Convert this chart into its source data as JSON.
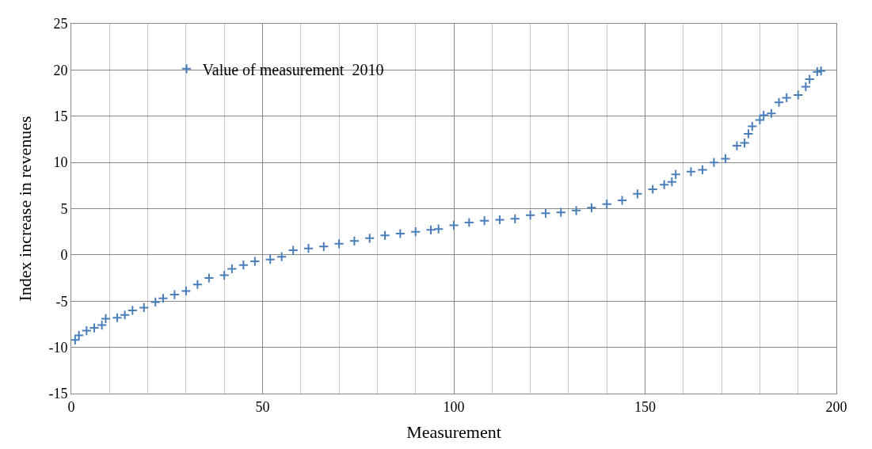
{
  "chart_data": {
    "type": "scatter",
    "xlabel": "Measurement",
    "ylabel": "Index increase in revenues",
    "marker": "cross",
    "grid": true,
    "legend": "top left",
    "xlim": [
      0,
      200
    ],
    "xticks": [
      0,
      50,
      100,
      150,
      200
    ],
    "ylim": [
      -15,
      25
    ],
    "yticks": [
      -15,
      -10,
      -5,
      0,
      5,
      10,
      15,
      20,
      25
    ],
    "series": [
      {
        "name": "Value of measurement  2010",
        "color": "#4a7ebb",
        "x": [
          1,
          2,
          4,
          6,
          8,
          9,
          12,
          14,
          16,
          19,
          22,
          24,
          27,
          30,
          33,
          36,
          40,
          42,
          45,
          48,
          52,
          55,
          58,
          62,
          66,
          70,
          74,
          78,
          82,
          86,
          90,
          94,
          96,
          100,
          104,
          108,
          112,
          116,
          120,
          124,
          128,
          132,
          136,
          140,
          144,
          148,
          152,
          155,
          157,
          158,
          162,
          165,
          168,
          171,
          174,
          176,
          177,
          178,
          180,
          181,
          183,
          185,
          187,
          190,
          192,
          193,
          195,
          196
        ],
        "values": [
          -9.2,
          -8.7,
          -8.2,
          -7.9,
          -7.6,
          -6.9,
          -6.8,
          -6.5,
          -6.0,
          -5.7,
          -5.1,
          -4.7,
          -4.3,
          -3.9,
          -3.2,
          -2.5,
          -2.2,
          -1.5,
          -1.1,
          -0.7,
          -0.5,
          -0.2,
          0.5,
          0.7,
          0.9,
          1.2,
          1.5,
          1.8,
          2.1,
          2.3,
          2.5,
          2.7,
          2.8,
          3.2,
          3.5,
          3.7,
          3.8,
          3.9,
          4.3,
          4.5,
          4.6,
          4.8,
          5.1,
          5.5,
          5.9,
          6.6,
          7.1,
          7.6,
          7.9,
          8.7,
          9.0,
          9.2,
          10.0,
          10.4,
          11.8,
          12.1,
          13.1,
          13.9,
          14.6,
          15.1,
          15.3,
          16.5,
          17.0,
          17.3,
          18.2,
          19.0,
          19.8,
          19.9
        ]
      }
    ]
  }
}
